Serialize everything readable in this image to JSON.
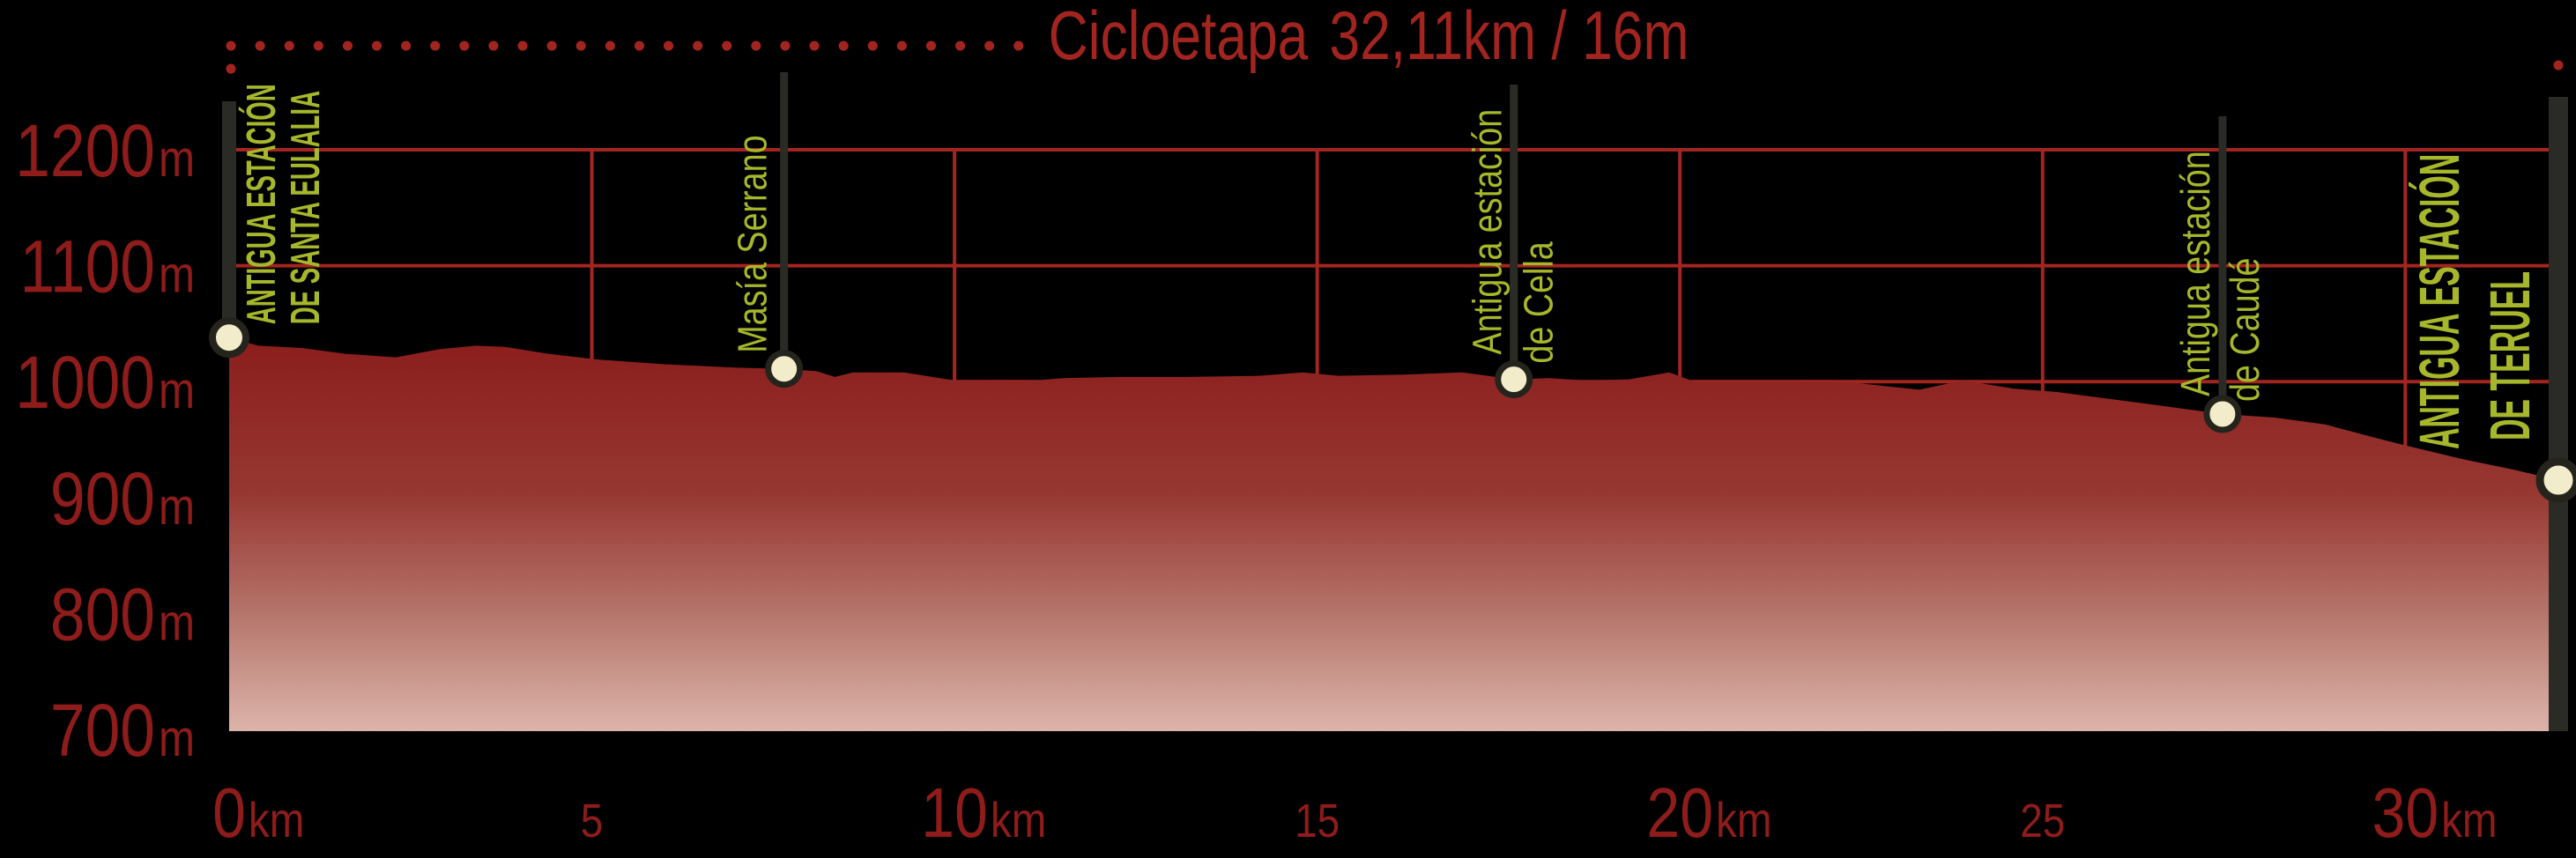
{
  "page": {
    "background": "#000000"
  },
  "chart_data": {
    "type": "area",
    "title": {
      "name": "Cicloetapa",
      "distance_time": "32,11km / 16m"
    },
    "x_unit": "km",
    "y_unit": "m",
    "x_range_km": [
      0,
      32.11
    ],
    "y_range_m": [
      700,
      1250
    ],
    "y_ticks": [
      {
        "m": 1200,
        "label": "1200",
        "suffix": "m"
      },
      {
        "m": 1100,
        "label": "1100",
        "suffix": "m"
      },
      {
        "m": 1000,
        "label": "1000",
        "suffix": "m"
      },
      {
        "m": 900,
        "label": "900",
        "suffix": "m"
      },
      {
        "m": 800,
        "label": "800",
        "suffix": "m"
      },
      {
        "m": 700,
        "label": "700",
        "suffix": "m"
      }
    ],
    "x_ticks": [
      {
        "km": 0,
        "label": "0",
        "suffix": "km",
        "major": true
      },
      {
        "km": 5,
        "label": "5",
        "suffix": "",
        "major": false
      },
      {
        "km": 10,
        "label": "10",
        "suffix": "km",
        "major": true
      },
      {
        "km": 15,
        "label": "15",
        "suffix": "",
        "major": false
      },
      {
        "km": 20,
        "label": "20",
        "suffix": "km",
        "major": true
      },
      {
        "km": 25,
        "label": "25",
        "suffix": "",
        "major": false
      },
      {
        "km": 30,
        "label": "30",
        "suffix": "km",
        "major": true
      }
    ],
    "grid": {
      "horizontal_m": [
        1200,
        1100,
        1000,
        900,
        800,
        700
      ],
      "vertical_km": [
        5,
        10,
        15,
        20,
        25,
        30
      ]
    },
    "profile_km_m": [
      [
        0,
        1038
      ],
      [
        0.4,
        1031
      ],
      [
        1.0,
        1029
      ],
      [
        1.6,
        1024
      ],
      [
        2.3,
        1021
      ],
      [
        2.9,
        1028
      ],
      [
        3.4,
        1031
      ],
      [
        3.8,
        1030
      ],
      [
        4.4,
        1024
      ],
      [
        5.1,
        1019
      ],
      [
        6.0,
        1015
      ],
      [
        7.0,
        1012
      ],
      [
        7.65,
        1011
      ],
      [
        8.1,
        1009
      ],
      [
        8.35,
        1004
      ],
      [
        8.6,
        1008
      ],
      [
        9.3,
        1008
      ],
      [
        10.0,
        1001
      ],
      [
        10.9,
        1000
      ],
      [
        11.5,
        1003
      ],
      [
        12.3,
        1004
      ],
      [
        13.2,
        1004
      ],
      [
        14.2,
        1005
      ],
      [
        14.8,
        1008
      ],
      [
        15.3,
        1005
      ],
      [
        16.2,
        1006
      ],
      [
        17.0,
        1008
      ],
      [
        17.71,
        1002
      ],
      [
        18.2,
        1003
      ],
      [
        18.7,
        1001
      ],
      [
        19.3,
        1002
      ],
      [
        19.85,
        1008
      ],
      [
        20.2,
        1000
      ],
      [
        21.3,
        1000
      ],
      [
        22.4,
        999
      ],
      [
        23.3,
        993
      ],
      [
        23.9,
        1001
      ],
      [
        24.6,
        994
      ],
      [
        25.2,
        991
      ],
      [
        26.3,
        982
      ],
      [
        27.48,
        972
      ],
      [
        28.2,
        969
      ],
      [
        28.9,
        963
      ],
      [
        29.5,
        953
      ],
      [
        30.0,
        945
      ],
      [
        30.8,
        933
      ],
      [
        31.5,
        924
      ],
      [
        32.11,
        915
      ]
    ],
    "stations": [
      {
        "name_lines": [
          "ANTIGUA ESTACIÓN",
          "DE SANTA EULALIA"
        ],
        "km": 0,
        "elevation_m": 1038,
        "terminus": true
      },
      {
        "name_lines": [
          "Masía Serrano"
        ],
        "km": 7.65,
        "elevation_m": 1011,
        "terminus": false
      },
      {
        "name_lines": [
          "Antigua estación",
          "de Cella"
        ],
        "km": 17.71,
        "elevation_m": 1002,
        "terminus": false
      },
      {
        "name_lines": [
          "Antigua estación",
          "de Caudé"
        ],
        "km": 27.48,
        "elevation_m": 972,
        "terminus": false
      },
      {
        "name_lines": [
          "ANTIGUA ESTACIÓN",
          "DE TERUEL"
        ],
        "km": 32.11,
        "elevation_m": 915,
        "terminus": true
      }
    ],
    "legend_position": "none",
    "grid_on": true,
    "colors": {
      "background": "#000000",
      "axis_label_red": "#8E1C1A",
      "title_red": "#A2241F",
      "grid_red": "#A32520",
      "dotted_red": "#A2241F",
      "station_green": "#A6B72B",
      "marker_fill": "#F3ECCB",
      "marker_ring": "#24241D",
      "marker_stalk": "#2B2B26",
      "area_top": "#8A1D1C",
      "area_mid": "#973731",
      "area_low": "#B5746A",
      "area_bottom": "#DCB4AA"
    }
  }
}
